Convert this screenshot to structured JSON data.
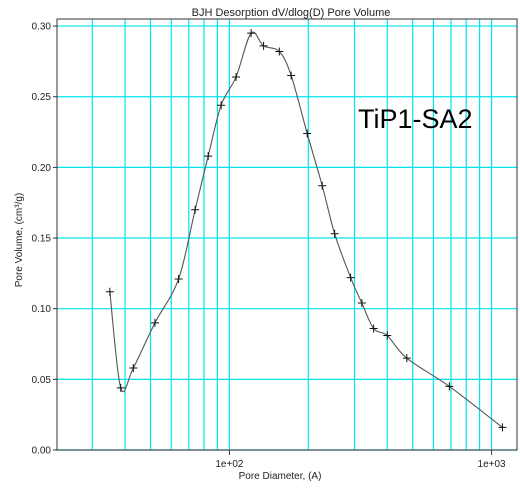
{
  "chart_data": {
    "type": "line",
    "title": "BJH Desorption dV/dlog(D) Pore Volume",
    "xlabel": "Pore Diameter, (A)",
    "ylabel": "Pore Volume, (cm³/g)",
    "x_scale": "log",
    "xlim": [
      22,
      1250
    ],
    "ylim": [
      0.0,
      0.305
    ],
    "grid": true,
    "grid_color": "#00e5ee",
    "line_color": "#555555",
    "x_ticks": [
      {
        "value": 100,
        "label": "1e+02"
      },
      {
        "value": 1000,
        "label": "1e+03"
      }
    ],
    "y_ticks": [
      {
        "value": 0.0,
        "label": "0.00"
      },
      {
        "value": 0.05,
        "label": "0.05"
      },
      {
        "value": 0.1,
        "label": "0.10"
      },
      {
        "value": 0.15,
        "label": "0.15"
      },
      {
        "value": 0.2,
        "label": "0.20"
      },
      {
        "value": 0.25,
        "label": "0.25"
      },
      {
        "value": 0.3,
        "label": "0.30"
      }
    ],
    "series": [
      {
        "x": [
          35,
          38.5,
          43,
          52,
          64,
          74,
          83,
          93,
          106,
          121,
          135,
          155,
          172,
          198,
          226,
          252,
          290,
          320,
          355,
          400,
          475,
          690,
          1100
        ],
        "y": [
          0.112,
          0.044,
          0.058,
          0.09,
          0.121,
          0.17,
          0.208,
          0.244,
          0.264,
          0.295,
          0.286,
          0.282,
          0.265,
          0.224,
          0.187,
          0.153,
          0.122,
          0.104,
          0.086,
          0.081,
          0.065,
          0.045,
          0.016
        ]
      }
    ],
    "annotation": "TiP1-SA2"
  }
}
